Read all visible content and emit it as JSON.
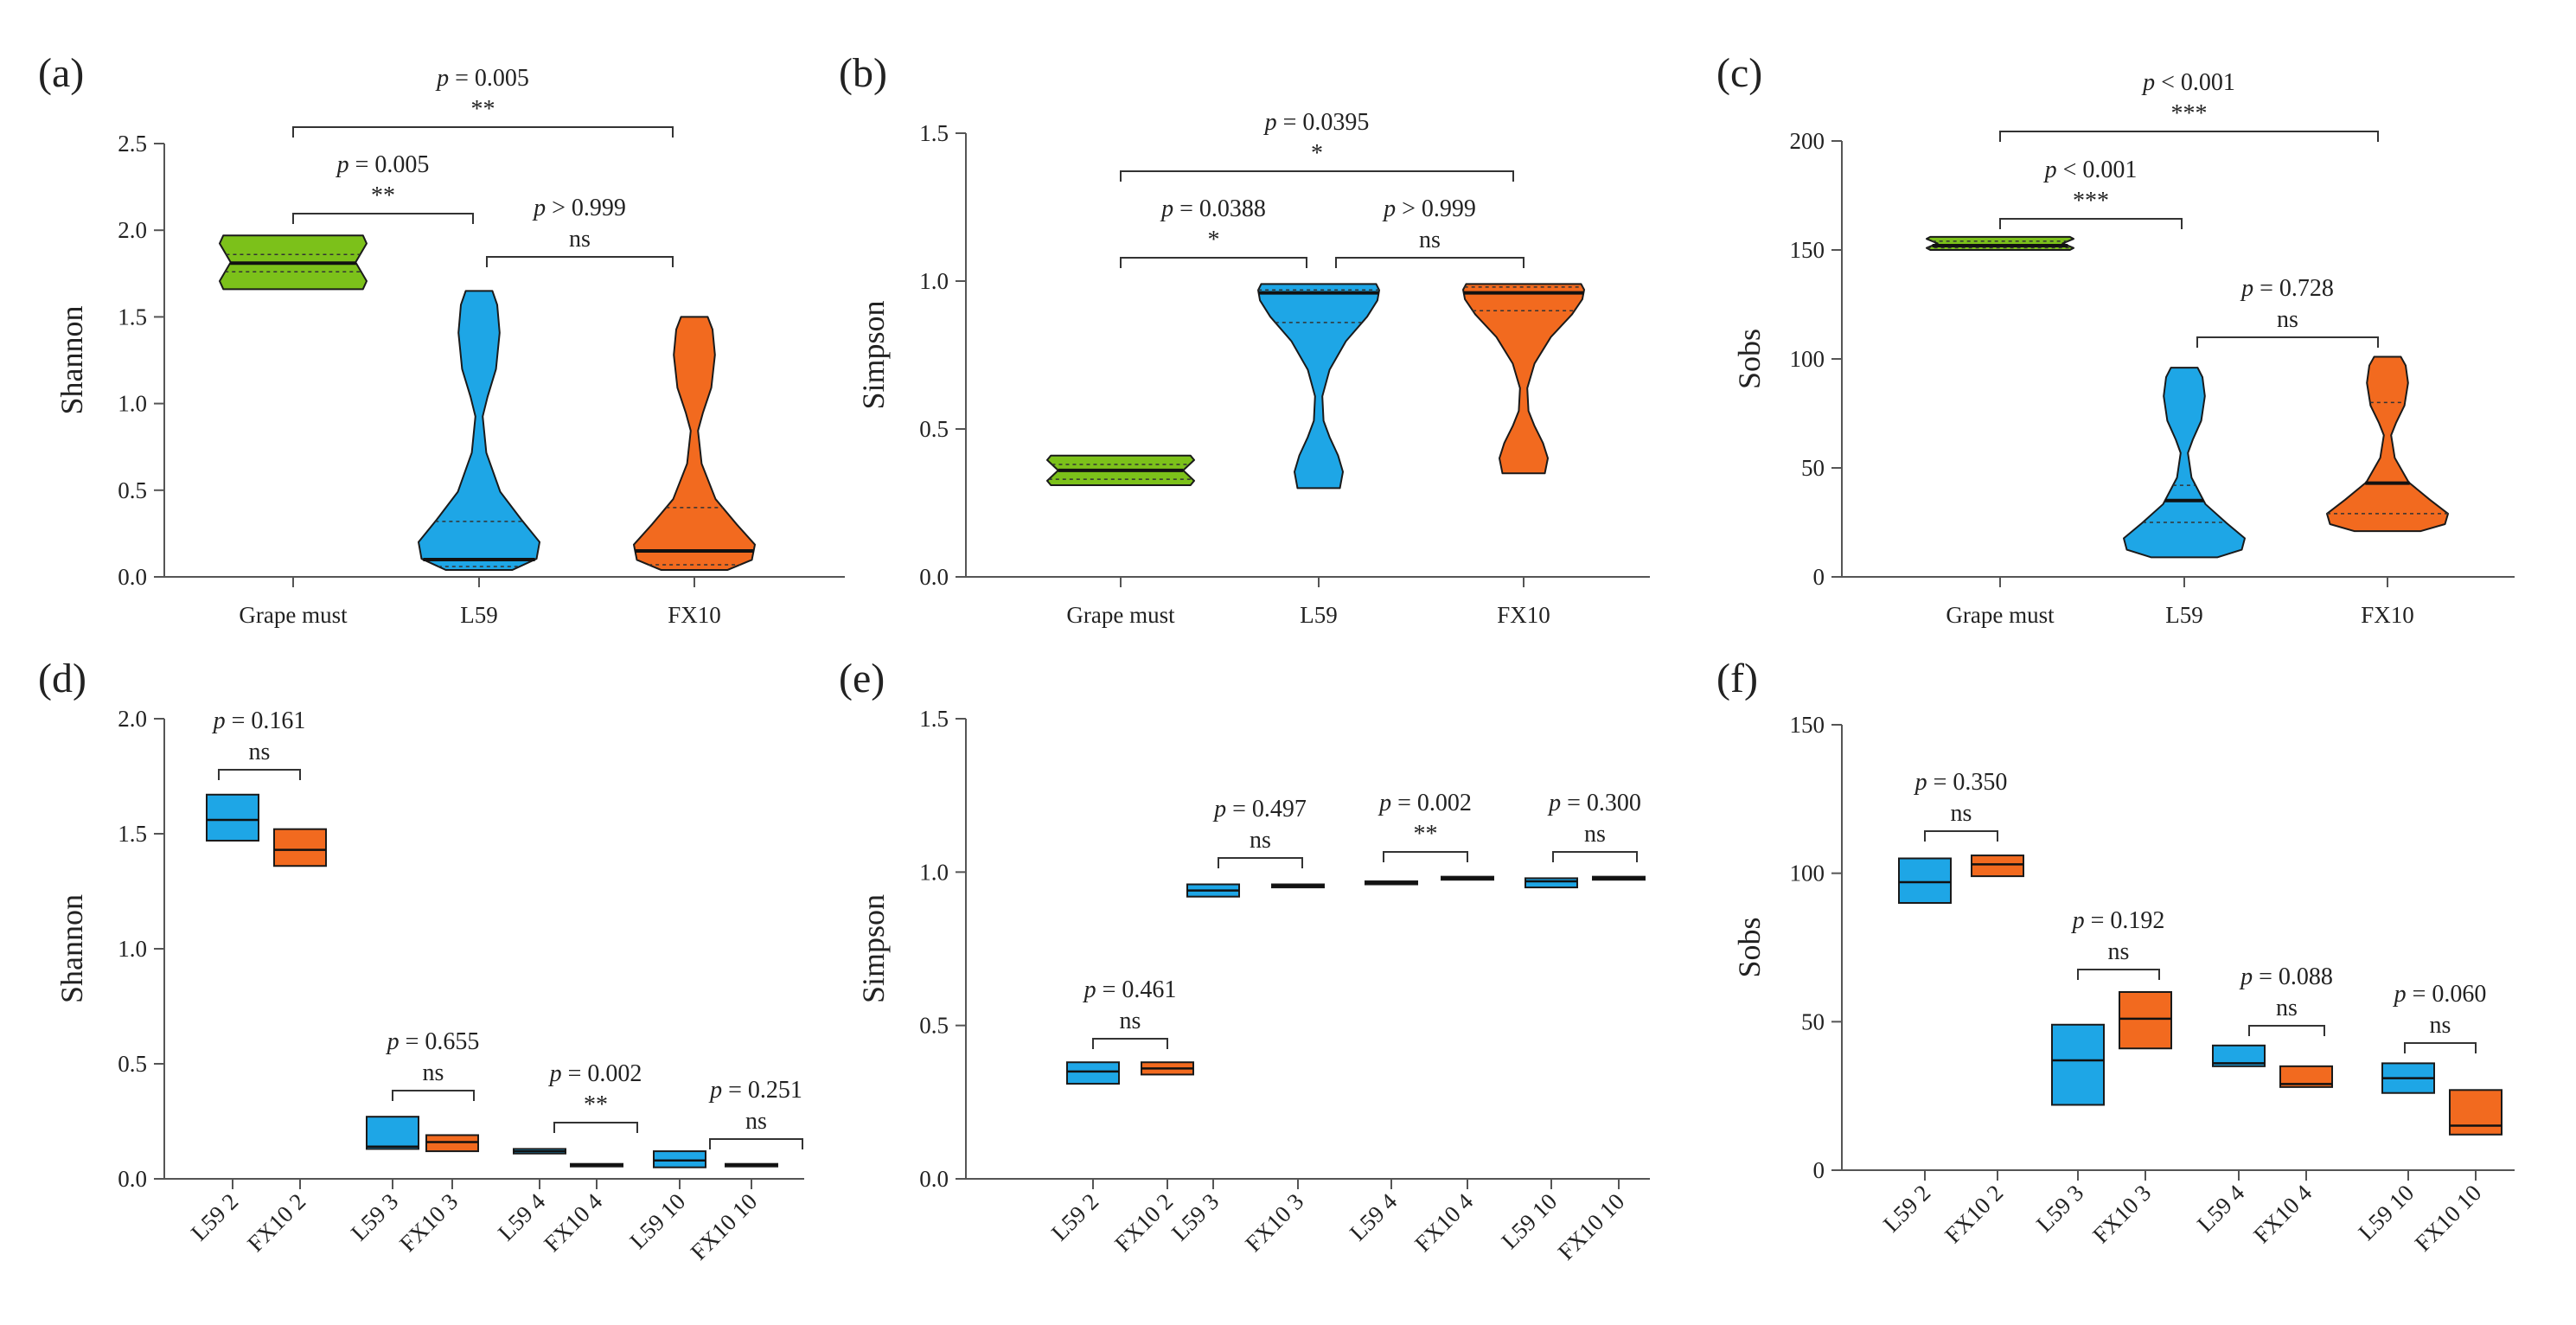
{
  "colors": {
    "grape": "#7cc11a",
    "l59": "#1ea6e6",
    "fx10": "#f26a1f",
    "axis": "#555555",
    "text": "#222222"
  },
  "panels": [
    {
      "letter": "(a)",
      "kind": "violin",
      "ylabel": "Shannon",
      "ylim": [
        0,
        2.5
      ],
      "yticks": [
        "0.0",
        "0.5",
        "1.0",
        "1.5",
        "2.0",
        "2.5"
      ],
      "groups": [
        {
          "label": "Grape must",
          "color": "grape"
        },
        {
          "label": "L59",
          "color": "l59"
        },
        {
          "label": "FX10",
          "color": "fx10"
        }
      ],
      "comparisons": [
        {
          "from": 0,
          "to": 1,
          "p": "= 0.005",
          "sig": "**"
        },
        {
          "from": 1,
          "to": 2,
          "p": "> 0.999",
          "sig": "ns"
        },
        {
          "from": 0,
          "to": 2,
          "p": "= 0.005",
          "sig": "**"
        }
      ]
    },
    {
      "letter": "(b)",
      "kind": "violin",
      "ylabel": "Simpson",
      "ylim": [
        0,
        1.5
      ],
      "yticks": [
        "0.0",
        "0.5",
        "1.0",
        "1.5"
      ],
      "groups": [
        {
          "label": "Grape must",
          "color": "grape"
        },
        {
          "label": "L59",
          "color": "l59"
        },
        {
          "label": "FX10",
          "color": "fx10"
        }
      ],
      "comparisons": [
        {
          "from": 0,
          "to": 1,
          "p": "= 0.0388",
          "sig": "*"
        },
        {
          "from": 1,
          "to": 2,
          "p": "> 0.999",
          "sig": "ns"
        },
        {
          "from": 0,
          "to": 2,
          "p": "= 0.0395",
          "sig": "*"
        }
      ]
    },
    {
      "letter": "(c)",
      "kind": "violin",
      "ylabel": "Sobs",
      "ylim": [
        0,
        200
      ],
      "yticks": [
        "0",
        "50",
        "100",
        "150",
        "200"
      ],
      "groups": [
        {
          "label": "Grape must",
          "color": "grape"
        },
        {
          "label": "L59",
          "color": "l59"
        },
        {
          "label": "FX10",
          "color": "fx10"
        }
      ],
      "comparisons": [
        {
          "from": 0,
          "to": 1,
          "p": "< 0.001",
          "sig": "***"
        },
        {
          "from": 1,
          "to": 2,
          "p": "= 0.728",
          "sig": "ns"
        },
        {
          "from": 0,
          "to": 2,
          "p": "< 0.001",
          "sig": "***"
        }
      ]
    },
    {
      "letter": "(d)",
      "kind": "box",
      "ylabel": "Shannon",
      "ylim": [
        0,
        2.0
      ],
      "yticks": [
        "0.0",
        "0.5",
        "1.0",
        "1.5",
        "2.0"
      ],
      "groups": [
        {
          "label": "L59 2",
          "color": "l59"
        },
        {
          "label": "FX10 2",
          "color": "fx10"
        },
        {
          "label": "L59 3",
          "color": "l59"
        },
        {
          "label": "FX10 3",
          "color": "fx10"
        },
        {
          "label": "L59 4",
          "color": "l59"
        },
        {
          "label": "FX10 4",
          "color": "fx10"
        },
        {
          "label": "L59 10",
          "color": "l59"
        },
        {
          "label": "FX10 10",
          "color": "fx10"
        }
      ],
      "comparisons": [
        {
          "from": 0,
          "to": 1,
          "p": "= 0.161",
          "sig": "ns"
        },
        {
          "from": 2,
          "to": 3,
          "p": "= 0.655",
          "sig": "ns"
        },
        {
          "from": 4,
          "to": 5,
          "p": "= 0.002",
          "sig": "**"
        },
        {
          "from": 6,
          "to": 7,
          "p": "= 0.251",
          "sig": "ns"
        }
      ]
    },
    {
      "letter": "(e)",
      "kind": "box",
      "ylabel": "Simpson",
      "ylim": [
        0,
        1.5
      ],
      "yticks": [
        "0.0",
        "0.5",
        "1.0",
        "1.5"
      ],
      "groups": [
        {
          "label": "L59 2",
          "color": "l59"
        },
        {
          "label": "FX10 2",
          "color": "fx10"
        },
        {
          "label": "L59 3",
          "color": "l59"
        },
        {
          "label": "FX10 3",
          "color": "fx10"
        },
        {
          "label": "L59 4",
          "color": "l59"
        },
        {
          "label": "FX10 4",
          "color": "fx10"
        },
        {
          "label": "L59 10",
          "color": "l59"
        },
        {
          "label": "FX10 10",
          "color": "fx10"
        }
      ],
      "comparisons": [
        {
          "from": 0,
          "to": 1,
          "p": "= 0.461",
          "sig": "ns"
        },
        {
          "from": 2,
          "to": 3,
          "p": "= 0.497",
          "sig": "ns"
        },
        {
          "from": 4,
          "to": 5,
          "p": "= 0.002",
          "sig": "**"
        },
        {
          "from": 6,
          "to": 7,
          "p": "= 0.300",
          "sig": "ns"
        }
      ]
    },
    {
      "letter": "(f)",
      "kind": "box",
      "ylabel": "Sobs",
      "ylim": [
        0,
        150
      ],
      "yticks": [
        "0",
        "50",
        "100",
        "150"
      ],
      "groups": [
        {
          "label": "L59 2",
          "color": "l59"
        },
        {
          "label": "FX10 2",
          "color": "fx10"
        },
        {
          "label": "L59 3",
          "color": "l59"
        },
        {
          "label": "FX10 3",
          "color": "fx10"
        },
        {
          "label": "L59 4",
          "color": "l59"
        },
        {
          "label": "FX10 4",
          "color": "fx10"
        },
        {
          "label": "L59 10",
          "color": "l59"
        },
        {
          "label": "FX10 10",
          "color": "fx10"
        }
      ],
      "comparisons": [
        {
          "from": 0,
          "to": 1,
          "p": "= 0.350",
          "sig": "ns"
        },
        {
          "from": 2,
          "to": 3,
          "p": "= 0.192",
          "sig": "ns"
        },
        {
          "from": 4,
          "to": 5,
          "p": "= 0.088",
          "sig": "ns"
        },
        {
          "from": 6,
          "to": 7,
          "p": "= 0.060",
          "sig": "ns"
        }
      ]
    }
  ],
  "chart_data": [
    {
      "type": "violin",
      "panel": "(a)",
      "ylabel": "Shannon",
      "ylim": [
        0,
        2.5
      ],
      "categories": [
        "Grape must",
        "L59",
        "FX10"
      ],
      "series": [
        {
          "name": "Grape must",
          "min": 1.66,
          "max": 1.97,
          "median": 1.81,
          "q1": 1.76,
          "q3": 1.86,
          "shape": "narrow"
        },
        {
          "name": "L59",
          "min": 0.04,
          "max": 1.65,
          "median": 0.1,
          "q1": 0.06,
          "q3": 0.32,
          "shape": "bottom-heavy"
        },
        {
          "name": "FX10",
          "min": 0.04,
          "max": 1.5,
          "median": 0.15,
          "q1": 0.07,
          "q3": 0.4,
          "shape": "bottom-heavy"
        }
      ]
    },
    {
      "type": "violin",
      "panel": "(b)",
      "ylabel": "Simpson",
      "ylim": [
        0,
        1.5
      ],
      "categories": [
        "Grape must",
        "L59",
        "FX10"
      ],
      "series": [
        {
          "name": "Grape must",
          "min": 0.31,
          "max": 0.41,
          "median": 0.36,
          "q1": 0.33,
          "q3": 0.38,
          "shape": "narrow"
        },
        {
          "name": "L59",
          "min": 0.3,
          "max": 0.99,
          "median": 0.96,
          "q1": 0.86,
          "q3": 0.97,
          "shape": "top-heavy"
        },
        {
          "name": "FX10",
          "min": 0.35,
          "max": 0.99,
          "median": 0.96,
          "q1": 0.9,
          "q3": 0.98,
          "shape": "top-heavy"
        }
      ]
    },
    {
      "type": "violin",
      "panel": "(c)",
      "ylabel": "Sobs",
      "ylim": [
        0,
        200
      ],
      "categories": [
        "Grape must",
        "L59",
        "FX10"
      ],
      "series": [
        {
          "name": "Grape must",
          "min": 150,
          "max": 156,
          "median": 152,
          "q1": 151,
          "q3": 154,
          "shape": "narrow"
        },
        {
          "name": "L59",
          "min": 9,
          "max": 96,
          "median": 35,
          "q1": 25,
          "q3": 42,
          "shape": "bottom-heavy"
        },
        {
          "name": "FX10",
          "min": 21,
          "max": 101,
          "median": 43,
          "q1": 29,
          "q3": 80,
          "shape": "bottom-heavy"
        }
      ]
    },
    {
      "type": "box",
      "panel": "(d)",
      "ylabel": "Shannon",
      "ylim": [
        0,
        2.0
      ],
      "categories": [
        "L59 2",
        "FX10 2",
        "L59 3",
        "FX10 3",
        "L59 4",
        "FX10 4",
        "L59 10",
        "FX10 10"
      ],
      "series": [
        {
          "name": "L59 2",
          "low": 1.47,
          "median": 1.56,
          "high": 1.67
        },
        {
          "name": "FX10 2",
          "low": 1.36,
          "median": 1.43,
          "high": 1.52
        },
        {
          "name": "L59 3",
          "low": 0.13,
          "median": 0.14,
          "high": 0.27
        },
        {
          "name": "FX10 3",
          "low": 0.12,
          "median": 0.16,
          "high": 0.19
        },
        {
          "name": "L59 4",
          "low": 0.11,
          "median": 0.12,
          "high": 0.13
        },
        {
          "name": "FX10 4",
          "low": 0.055,
          "median": 0.06,
          "high": 0.065
        },
        {
          "name": "L59 10",
          "low": 0.05,
          "median": 0.08,
          "high": 0.12
        },
        {
          "name": "FX10 10",
          "low": 0.055,
          "median": 0.06,
          "high": 0.065
        }
      ]
    },
    {
      "type": "box",
      "panel": "(e)",
      "ylabel": "Simpson",
      "ylim": [
        0,
        1.5
      ],
      "categories": [
        "L59 2",
        "FX10 2",
        "L59 3",
        "FX10 3",
        "L59 4",
        "FX10 4",
        "L59 10",
        "FX10 10"
      ],
      "series": [
        {
          "name": "L59 2",
          "low": 0.31,
          "median": 0.35,
          "high": 0.38
        },
        {
          "name": "FX10 2",
          "low": 0.34,
          "median": 0.36,
          "high": 0.38
        },
        {
          "name": "L59 3",
          "low": 0.92,
          "median": 0.94,
          "high": 0.96
        },
        {
          "name": "FX10 3",
          "low": 0.95,
          "median": 0.955,
          "high": 0.96
        },
        {
          "name": "L59 4",
          "low": 0.96,
          "median": 0.965,
          "high": 0.97
        },
        {
          "name": "FX10 4",
          "low": 0.975,
          "median": 0.98,
          "high": 0.985
        },
        {
          "name": "L59 10",
          "low": 0.95,
          "median": 0.97,
          "high": 0.98
        },
        {
          "name": "FX10 10",
          "low": 0.975,
          "median": 0.98,
          "high": 0.985
        }
      ]
    },
    {
      "type": "box",
      "panel": "(f)",
      "ylabel": "Sobs",
      "ylim": [
        0,
        150
      ],
      "categories": [
        "L59 2",
        "FX10 2",
        "L59 3",
        "FX10 3",
        "L59 4",
        "FX10 4",
        "L59 10",
        "FX10 10"
      ],
      "series": [
        {
          "name": "L59 2",
          "low": 90,
          "median": 97,
          "high": 105
        },
        {
          "name": "FX10 2",
          "low": 99,
          "median": 103,
          "high": 106
        },
        {
          "name": "L59 3",
          "low": 22,
          "median": 37,
          "high": 49
        },
        {
          "name": "FX10 3",
          "low": 41,
          "median": 51,
          "high": 60
        },
        {
          "name": "L59 4",
          "low": 35,
          "median": 36,
          "high": 42
        },
        {
          "name": "FX10 4",
          "low": 28,
          "median": 29,
          "high": 35
        },
        {
          "name": "L59 10",
          "low": 26,
          "median": 31,
          "high": 36
        },
        {
          "name": "FX10 10",
          "low": 12,
          "median": 15,
          "high": 27
        }
      ]
    }
  ]
}
